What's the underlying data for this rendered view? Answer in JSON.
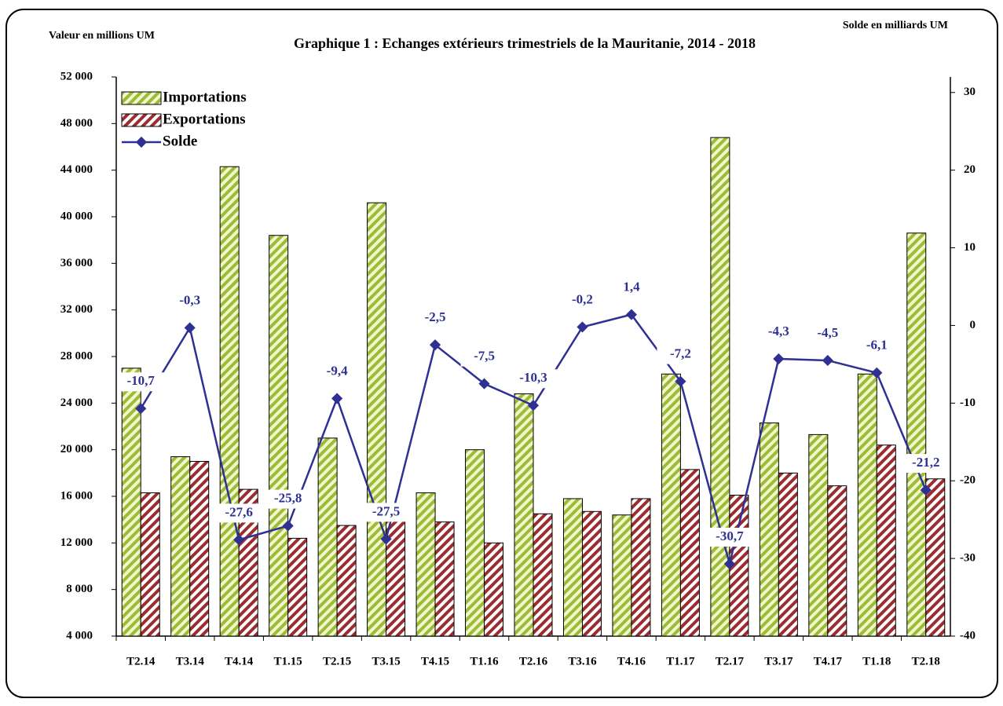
{
  "chart_data": {
    "type": "bar_line",
    "title": "Graphique 1 : Echanges extérieurs trimestriels de la Mauritanie, 2014 - 2018",
    "y_label": "Valeur en millions UM",
    "y2_label": "Solde en milliards UM",
    "categories": [
      "T2.14",
      "T3.14",
      "T4.14",
      "T1.15",
      "T2.15",
      "T3.15",
      "T4.15",
      "T1.16",
      "T2.16",
      "T3.16",
      "T4.16",
      "T1.17",
      "T2.17",
      "T3.17",
      "T4.17",
      "T1.18",
      "T2.18"
    ],
    "series": [
      {
        "name": "Importations",
        "type": "bar",
        "color": "#9bbb3a",
        "values": [
          27000,
          19400,
          44300,
          38400,
          21000,
          41200,
          16300,
          20000,
          24800,
          15800,
          14400,
          26500,
          46800,
          22300,
          21300,
          26500,
          38600
        ]
      },
      {
        "name": "Exportations",
        "type": "bar",
        "color": "#9b2d30",
        "values": [
          16300,
          19000,
          16600,
          12400,
          13500,
          14400,
          13800,
          12000,
          14500,
          14700,
          15800,
          18300,
          16100,
          18000,
          16900,
          20400,
          17500
        ]
      },
      {
        "name": "Solde",
        "type": "line",
        "axis": "y2",
        "color": "#2e3192",
        "values": [
          -10.7,
          -0.3,
          -27.6,
          -25.8,
          -9.4,
          -27.5,
          -2.5,
          -7.5,
          -10.3,
          -0.2,
          1.4,
          -7.2,
          -30.7,
          -4.3,
          -4.5,
          -6.1,
          -21.2
        ],
        "value_labels": [
          "-10,7",
          "-0,3",
          "-27,6",
          "-25,8",
          "-9,4",
          "-27,5",
          "-2,5",
          "-7,5",
          "-10,3",
          "-0,2",
          "1,4",
          "-7,2",
          "-30,7",
          "-4,3",
          "-4,5",
          "-6,1",
          "-21,2"
        ]
      }
    ],
    "ylim": [
      4000,
      52000
    ],
    "yticks": [
      {
        "value": 4000,
        "label": "4 000"
      },
      {
        "value": 8000,
        "label": "8 000"
      },
      {
        "value": 12000,
        "label": "12 000"
      },
      {
        "value": 16000,
        "label": "16 000"
      },
      {
        "value": 20000,
        "label": "20 000"
      },
      {
        "value": 24000,
        "label": "24 000"
      },
      {
        "value": 28000,
        "label": "28 000"
      },
      {
        "value": 32000,
        "label": "32 000"
      },
      {
        "value": 36000,
        "label": "36 000"
      },
      {
        "value": 40000,
        "label": "40 000"
      },
      {
        "value": 44000,
        "label": "44 000"
      },
      {
        "value": 48000,
        "label": "48 000"
      },
      {
        "value": 52000,
        "label": "52 000"
      }
    ],
    "y2lim": [
      -40,
      32
    ],
    "y2ticks": [
      -40,
      -30,
      -20,
      -10,
      0,
      10,
      20,
      30
    ],
    "legend": "upper left"
  }
}
